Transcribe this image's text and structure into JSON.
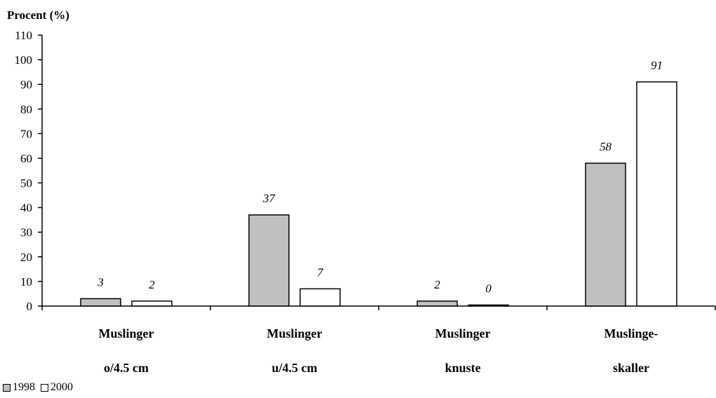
{
  "chart_data": {
    "type": "bar",
    "ylabel": "Procent (%)",
    "ylim": [
      0,
      110
    ],
    "yticks": [
      "0",
      "10",
      "20",
      "30",
      "40",
      "50",
      "60",
      "70",
      "80",
      "90",
      "100",
      "110"
    ],
    "categories": [
      [
        "Muslinger",
        "o/4.5 cm"
      ],
      [
        "Muslinger",
        "u/4.5 cm"
      ],
      [
        "Muslinger",
        "knuste"
      ],
      [
        "Muslinge-",
        "skaller"
      ]
    ],
    "series": [
      {
        "name": "1998",
        "color": "#c0c0c0",
        "values": [
          3,
          37,
          2,
          58
        ],
        "labels": [
          "3",
          "37",
          "2",
          "58"
        ]
      },
      {
        "name": "2000",
        "color": "#ffffff",
        "values": [
          2,
          7,
          0,
          91
        ],
        "labels": [
          "2",
          "7",
          "0",
          "91"
        ]
      }
    ],
    "legend_position": "bottom-left"
  }
}
